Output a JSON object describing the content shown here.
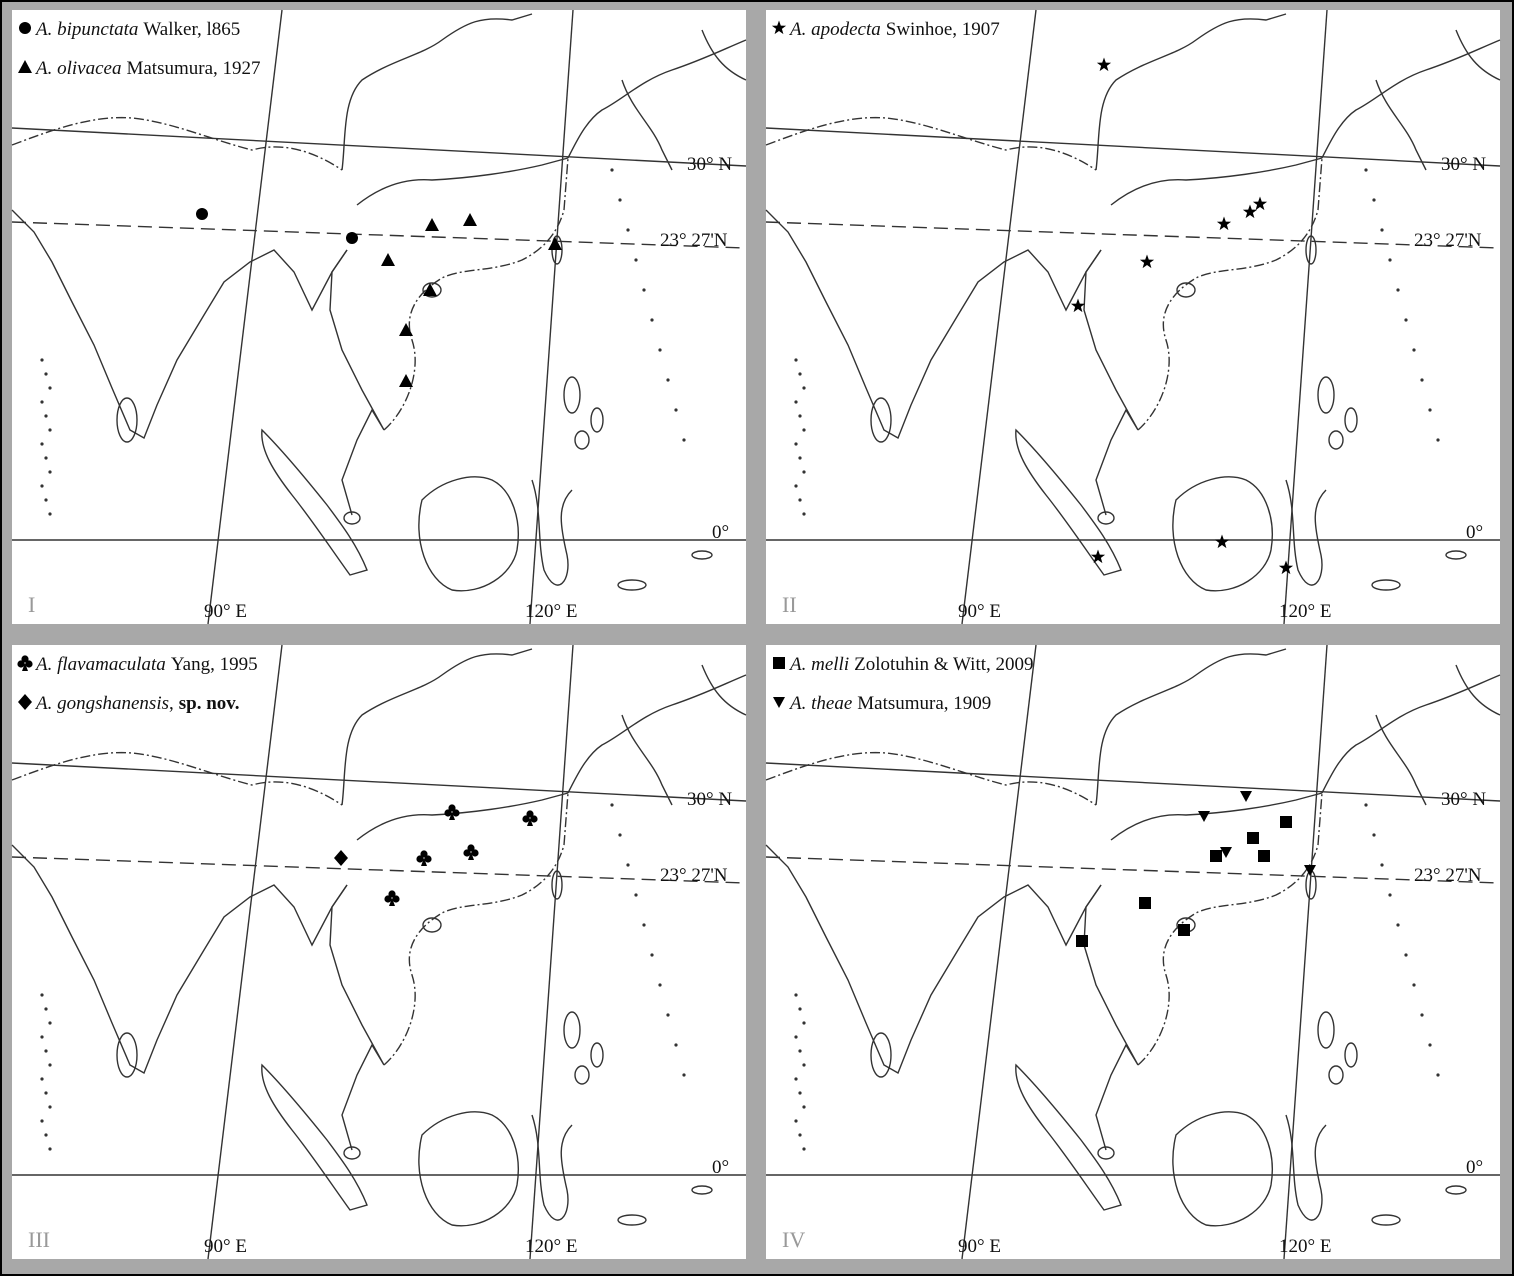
{
  "panels": [
    {
      "numeral": "I",
      "legend": [
        {
          "marker": "circle",
          "species": "A. bipunctata",
          "author": "Walker, l865"
        },
        {
          "marker": "triangle",
          "species": "A. olivacea",
          "author": "Matsumura, 1927"
        }
      ]
    },
    {
      "numeral": "II",
      "legend": [
        {
          "marker": "star",
          "species": "A. apodecta",
          "author": "Swinhoe, 1907"
        }
      ]
    },
    {
      "numeral": "III",
      "legend": [
        {
          "marker": "club",
          "species": "A. flavamaculata",
          "author": "Yang, 1995"
        },
        {
          "marker": "diamond",
          "species": "A. gongshanensis",
          "punct": ",",
          "status": "sp. nov."
        }
      ]
    },
    {
      "numeral": "IV",
      "legend": [
        {
          "marker": "square",
          "species": "A. melli",
          "author": "Zolotuhin & Witt, 2009"
        },
        {
          "marker": "triangle-down",
          "species": "A. theae",
          "author": "Matsumura, 1909"
        }
      ]
    }
  ],
  "labels": {
    "lat_30": "30° N",
    "lat_tropic": "23° 27'N",
    "equator": "0°",
    "lon_90": "90° E",
    "lon_120": "120° E"
  }
}
